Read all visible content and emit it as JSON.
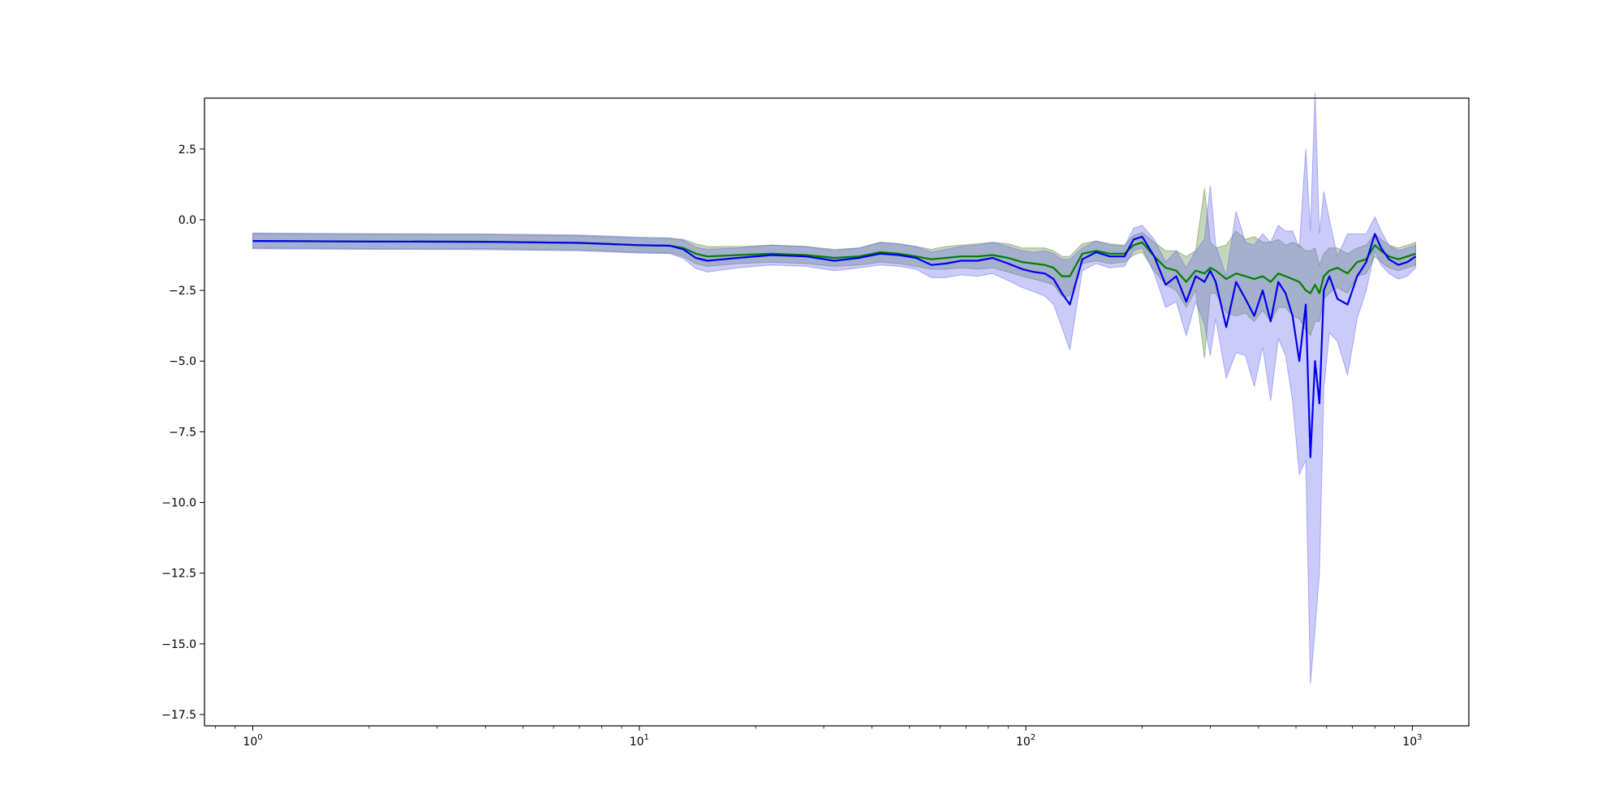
{
  "chart_data": {
    "type": "line",
    "title": "",
    "xlabel": "",
    "ylabel": "",
    "xscale": "log",
    "xlim": [
      0.75,
      1400
    ],
    "ylim": [
      -17.9,
      4.3
    ],
    "grid": false,
    "y_ticks": [
      2.5,
      0.0,
      -2.5,
      -5.0,
      -7.5,
      -10.0,
      -12.5,
      -15.0,
      -17.5
    ],
    "y_tick_labels": [
      "2.5",
      "0.0",
      "−2.5",
      "−5.0",
      "−7.5",
      "−10.0",
      "−12.5",
      "−15.0",
      "−17.5"
    ],
    "x_ticks": [
      1,
      10,
      100,
      1000
    ],
    "x_tick_labels": [
      {
        "base": "10",
        "exp": "0"
      },
      {
        "base": "10",
        "exp": "1"
      },
      {
        "base": "10",
        "exp": "2"
      },
      {
        "base": "10",
        "exp": "3"
      }
    ],
    "series": [
      {
        "color": "#008000",
        "band_color": "#5a8a3c",
        "x": [
          1,
          2,
          4,
          7,
          10,
          12,
          13,
          14,
          15,
          18,
          22,
          27,
          32,
          37,
          42,
          47,
          52,
          57,
          62,
          68,
          75,
          82,
          90,
          98,
          105,
          112,
          118,
          124,
          130,
          140,
          152,
          165,
          180,
          190,
          200,
          215,
          230,
          245,
          260,
          275,
          290,
          300,
          310,
          330,
          350,
          370,
          390,
          410,
          430,
          450,
          470,
          490,
          510,
          530,
          545,
          560,
          575,
          590,
          610,
          640,
          680,
          720,
          760,
          800,
          830,
          870,
          920,
          970,
          1020
        ],
        "y": [
          -0.75,
          -0.77,
          -0.78,
          -0.82,
          -0.9,
          -0.92,
          -1.0,
          -1.2,
          -1.3,
          -1.25,
          -1.2,
          -1.25,
          -1.35,
          -1.3,
          -1.15,
          -1.2,
          -1.3,
          -1.4,
          -1.35,
          -1.3,
          -1.3,
          -1.25,
          -1.35,
          -1.5,
          -1.55,
          -1.6,
          -1.7,
          -2.0,
          -2.0,
          -1.2,
          -1.1,
          -1.2,
          -1.2,
          -0.9,
          -0.8,
          -1.3,
          -1.7,
          -1.8,
          -2.2,
          -1.8,
          -1.9,
          -1.7,
          -1.8,
          -2.1,
          -1.9,
          -2.0,
          -2.1,
          -2.0,
          -2.2,
          -1.9,
          -2.0,
          -2.1,
          -2.2,
          -2.5,
          -2.6,
          -2.3,
          -2.6,
          -2.0,
          -1.8,
          -1.7,
          -1.9,
          -1.5,
          -1.4,
          -0.9,
          -1.1,
          -1.3,
          -1.4,
          -1.3,
          -1.2
        ],
        "band": [
          0.25,
          0.25,
          0.25,
          0.25,
          0.25,
          0.25,
          0.3,
          0.35,
          0.35,
          0.3,
          0.3,
          0.3,
          0.3,
          0.3,
          0.35,
          0.35,
          0.35,
          0.35,
          0.4,
          0.4,
          0.45,
          0.45,
          0.5,
          0.5,
          0.55,
          0.6,
          0.6,
          0.7,
          0.7,
          0.35,
          0.35,
          0.35,
          0.3,
          0.35,
          0.35,
          0.5,
          0.6,
          0.7,
          0.9,
          0.7,
          3.0,
          0.9,
          0.8,
          1.2,
          1.5,
          1.3,
          1.5,
          1.2,
          1.4,
          1.2,
          1.1,
          1.3,
          1.3,
          1.4,
          1.5,
          1.3,
          1.0,
          0.8,
          0.8,
          0.7,
          0.7,
          0.5,
          0.5,
          0.4,
          0.4,
          0.4,
          0.4,
          0.4,
          0.4
        ]
      },
      {
        "color": "#0000ee",
        "band_color": "#6a6aee",
        "x": [
          1,
          2,
          4,
          7,
          10,
          12,
          13,
          14,
          15,
          18,
          22,
          27,
          32,
          37,
          42,
          47,
          52,
          57,
          62,
          68,
          75,
          82,
          90,
          98,
          105,
          112,
          118,
          124,
          130,
          140,
          152,
          165,
          180,
          190,
          200,
          215,
          230,
          245,
          260,
          275,
          290,
          300,
          310,
          330,
          350,
          370,
          390,
          410,
          430,
          450,
          470,
          490,
          510,
          530,
          545,
          560,
          575,
          590,
          610,
          640,
          680,
          720,
          760,
          800,
          830,
          870,
          920,
          970,
          1020
        ],
        "y": [
          -0.75,
          -0.77,
          -0.78,
          -0.82,
          -0.9,
          -0.92,
          -1.05,
          -1.35,
          -1.45,
          -1.35,
          -1.25,
          -1.3,
          -1.45,
          -1.35,
          -1.2,
          -1.25,
          -1.35,
          -1.6,
          -1.55,
          -1.45,
          -1.45,
          -1.35,
          -1.55,
          -1.75,
          -1.85,
          -1.9,
          -2.1,
          -2.6,
          -3.0,
          -1.4,
          -1.15,
          -1.3,
          -1.3,
          -0.7,
          -0.6,
          -1.3,
          -2.3,
          -2.0,
          -2.9,
          -2.0,
          -2.2,
          -1.8,
          -2.2,
          -3.8,
          -2.2,
          -2.8,
          -3.4,
          -2.5,
          -3.6,
          -2.2,
          -2.6,
          -3.4,
          -5.0,
          -3.0,
          -8.4,
          -5.0,
          -6.5,
          -2.5,
          -2.0,
          -2.8,
          -3.0,
          -2.0,
          -1.5,
          -0.5,
          -1.0,
          -1.4,
          -1.6,
          -1.5,
          -1.3
        ],
        "band": [
          0.28,
          0.28,
          0.28,
          0.28,
          0.28,
          0.28,
          0.32,
          0.38,
          0.4,
          0.35,
          0.35,
          0.35,
          0.35,
          0.35,
          0.4,
          0.4,
          0.4,
          0.45,
          0.5,
          0.5,
          0.55,
          0.55,
          0.6,
          0.65,
          0.7,
          0.8,
          0.9,
          1.2,
          1.6,
          0.4,
          0.4,
          0.4,
          0.35,
          0.4,
          0.4,
          0.6,
          0.8,
          0.9,
          1.2,
          0.9,
          1.5,
          3.0,
          1.3,
          1.8,
          2.5,
          2.0,
          2.5,
          2.0,
          2.8,
          2.0,
          2.2,
          3.0,
          4.0,
          5.5,
          8.0,
          9.5,
          6.0,
          3.5,
          2.0,
          1.5,
          2.5,
          1.5,
          1.0,
          0.6,
          0.6,
          0.5,
          0.5,
          0.5,
          0.4
        ]
      }
    ]
  }
}
